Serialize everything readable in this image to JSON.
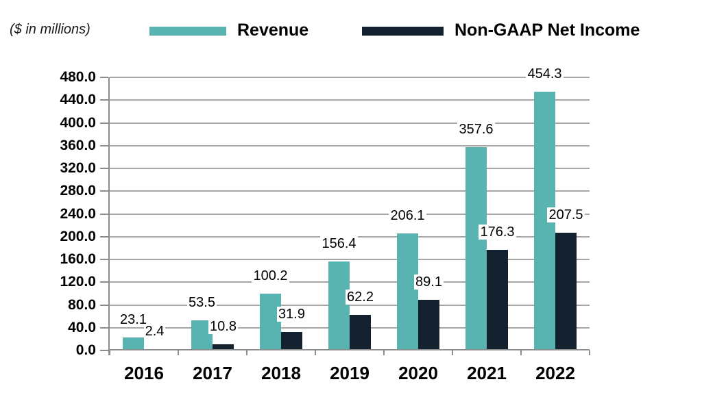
{
  "header": {
    "units_label": "($ in millions)"
  },
  "legend": {
    "position": "top",
    "items": [
      {
        "label": "Revenue",
        "color": "#59B4B1"
      },
      {
        "label": "Non-GAAP Net Income",
        "color": "#13222E"
      }
    ]
  },
  "chart_data": {
    "type": "bar",
    "title": "",
    "units": "($ in millions)",
    "categories": [
      "2016",
      "2017",
      "2018",
      "2019",
      "2020",
      "2021",
      "2022"
    ],
    "series": [
      {
        "name": "Revenue",
        "color": "#59B4B1",
        "values": [
          23.1,
          53.5,
          100.2,
          156.4,
          206.1,
          357.6,
          454.3
        ],
        "labels": [
          "23.1",
          "53.5",
          "100.2",
          "156.4",
          "206.1",
          "357.6",
          "454.3"
        ]
      },
      {
        "name": "Non-GAAP Net Income",
        "color": "#13222E",
        "values": [
          2.4,
          10.8,
          31.9,
          62.2,
          89.1,
          176.3,
          207.5
        ],
        "labels": [
          "2.4",
          "10.8",
          "31.9",
          "62.2",
          "89.1",
          "176.3",
          "207.5"
        ]
      }
    ],
    "xlabel": "",
    "ylabel": "",
    "ylim": [
      0,
      480
    ],
    "ytick_step": 40,
    "ytick_labels": [
      "0.0",
      "40.0",
      "80.0",
      "120.0",
      "160.0",
      "200.0",
      "240.0",
      "280.0",
      "320.0",
      "360.0",
      "400.0",
      "440.0",
      "480.0"
    ],
    "grid": true,
    "legend_position": "top",
    "data_labels": "outside-end"
  },
  "colors": {
    "grid": "#A6A6A6",
    "axis": "#8C8C8C",
    "text": "#000000",
    "background": "#FFFFFF"
  }
}
